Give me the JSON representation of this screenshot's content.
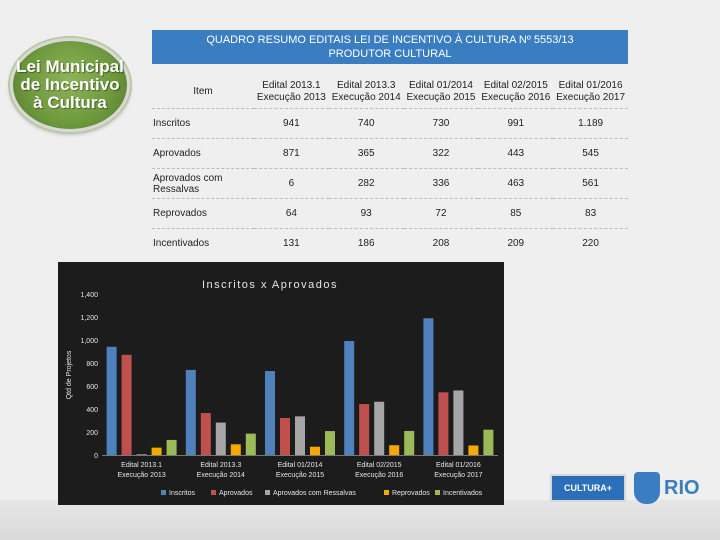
{
  "logo": {
    "lines": [
      "Lei Municipal",
      "de Incentivo",
      "à Cultura"
    ]
  },
  "header": {
    "title_line1": "QUADRO RESUMO EDITAIS LEI DE INCENTIVO À CULTURA Nº 5553/13",
    "title_line2": "PRODUTOR CULTURAL"
  },
  "table": {
    "item_header": "Item",
    "columns": [
      {
        "l1": "Edital 2013.1",
        "l2": "Execução 2013"
      },
      {
        "l1": "Edital 2013.3",
        "l2": "Execução 2014"
      },
      {
        "l1": "Edital 01/2014",
        "l2": "Execução 2015"
      },
      {
        "l1": "Edital 02/2015",
        "l2": "Execução 2016"
      },
      {
        "l1": "Edital 01/2016",
        "l2": "Execução 2017"
      }
    ],
    "rows": [
      {
        "label": "Inscritos",
        "values": [
          "941",
          "740",
          "730",
          "991",
          "1.189"
        ]
      },
      {
        "label": "Aprovados",
        "values": [
          "871",
          "365",
          "322",
          "443",
          "545"
        ]
      },
      {
        "label": "Aprovados com Ressalvas",
        "values": [
          "6",
          "282",
          "336",
          "463",
          "561"
        ]
      },
      {
        "label": "Reprovados",
        "values": [
          "64",
          "93",
          "72",
          "85",
          "83"
        ]
      },
      {
        "label": "Incentivados",
        "values": [
          "131",
          "186",
          "208",
          "209",
          "220"
        ]
      }
    ]
  },
  "chart_data": {
    "type": "bar",
    "title": "Inscritos x Aprovados",
    "ylabel": "Qtd de Projetos",
    "ylim": [
      0,
      1400
    ],
    "yticks": [
      "0",
      "200",
      "400",
      "600",
      "800",
      "1,000",
      "1,200",
      "1,400"
    ],
    "categories": [
      [
        "Edital 2013.1",
        "Execução 2013"
      ],
      [
        "Edital 2013.3",
        "Execução 2014"
      ],
      [
        "Edital 01/2014",
        "Execução 2015"
      ],
      [
        "Edital 02/2015",
        "Execução 2016"
      ],
      [
        "Edital 01/2016",
        "Execução 2017"
      ]
    ],
    "series": [
      {
        "name": "Inscritos",
        "color": "#4f81bd",
        "values": [
          941,
          740,
          730,
          991,
          1189
        ]
      },
      {
        "name": "Aprovados",
        "color": "#c0504d",
        "values": [
          871,
          365,
          322,
          443,
          545
        ]
      },
      {
        "name": "Aprovados com Ressalvas",
        "color": "#a6a6a6",
        "values": [
          6,
          282,
          336,
          463,
          561
        ]
      },
      {
        "name": "Reprovados",
        "color": "#f6a800",
        "values": [
          64,
          93,
          72,
          85,
          83
        ]
      },
      {
        "name": "Incentivados",
        "color": "#9bbb59",
        "values": [
          131,
          186,
          208,
          209,
          220
        ]
      }
    ],
    "legend_position": "bottom",
    "grid": false
  },
  "branding": {
    "cultura": "CULTURA+",
    "rio": "RIO"
  }
}
